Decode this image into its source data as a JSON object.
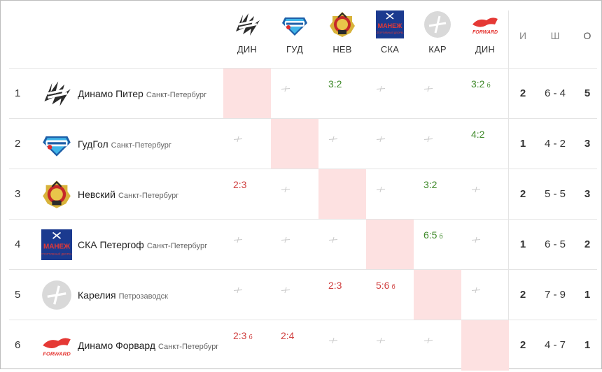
{
  "columns": {
    "teams": [
      {
        "abbr": "ДИН",
        "logo": "dinamo-piter-logo"
      },
      {
        "abbr": "ГУД",
        "logo": "gudgol-logo"
      },
      {
        "abbr": "НЕВ",
        "logo": "nevsky-logo"
      },
      {
        "abbr": "СКА",
        "logo": "ska-manezh-logo"
      },
      {
        "abbr": "КАР",
        "logo": "karelia-logo"
      },
      {
        "abbr": "ДИН",
        "logo": "dinamo-forward-logo"
      }
    ],
    "stats": [
      "И",
      "Ш",
      "О"
    ]
  },
  "logo_text": {
    "ska": [
      "МАНЕЖ",
      "СПОРТИВНЫЙ ДВОРЕЦ"
    ],
    "forward": "FORWARD"
  },
  "rows": [
    {
      "rank": "1",
      "name": "Динамо Питер",
      "city": "Санкт-Петербург",
      "cells": [
        null,
        "–",
        "3:2",
        "–",
        "–",
        "3:2"
      ],
      "cells_b": [
        "",
        "",
        "",
        "",
        "",
        "б"
      ],
      "games": "2",
      "goals": "6 - 4",
      "points": "5"
    },
    {
      "rank": "2",
      "name": "ГудГол",
      "city": "Санкт-Петербург",
      "cells": [
        "–",
        null,
        "–",
        "–",
        "–",
        "4:2"
      ],
      "cells_b": [
        "",
        "",
        "",
        "",
        "",
        ""
      ],
      "games": "1",
      "goals": "4 - 2",
      "points": "3"
    },
    {
      "rank": "3",
      "name": "Невский",
      "city": "Санкт-Петербург",
      "cells": [
        "2:3",
        "–",
        null,
        "–",
        "3:2",
        "–"
      ],
      "cells_b": [
        "",
        "",
        "",
        "",
        "",
        ""
      ],
      "games": "2",
      "goals": "5 - 5",
      "points": "3"
    },
    {
      "rank": "4",
      "name": "СКА Петергоф",
      "city": "Санкт-Петербург",
      "cells": [
        "–",
        "–",
        "–",
        null,
        "6:5",
        "–"
      ],
      "cells_b": [
        "",
        "",
        "",
        "",
        "б",
        ""
      ],
      "games": "1",
      "goals": "6 - 5",
      "points": "2"
    },
    {
      "rank": "5",
      "name": "Карелия",
      "city": "Петрозаводск",
      "cells": [
        "–",
        "–",
        "2:3",
        "5:6",
        null,
        "–"
      ],
      "cells_b": [
        "",
        "",
        "",
        "б",
        "",
        ""
      ],
      "games": "2",
      "goals": "7 - 9",
      "points": "1"
    },
    {
      "rank": "6",
      "name": "Динамо Форвард",
      "city": "Санкт-Петербург",
      "cells": [
        "2:3",
        "2:4",
        "–",
        "–",
        "–",
        null
      ],
      "cells_b": [
        "б",
        "",
        "",
        "",
        "",
        ""
      ],
      "games": "2",
      "goals": "4 - 7",
      "points": "1"
    }
  ],
  "colors": {
    "win": "#3f8a2a",
    "loss": "#d04040",
    "self_cell": "#fde1e1",
    "grid": "#e4e4e4"
  }
}
